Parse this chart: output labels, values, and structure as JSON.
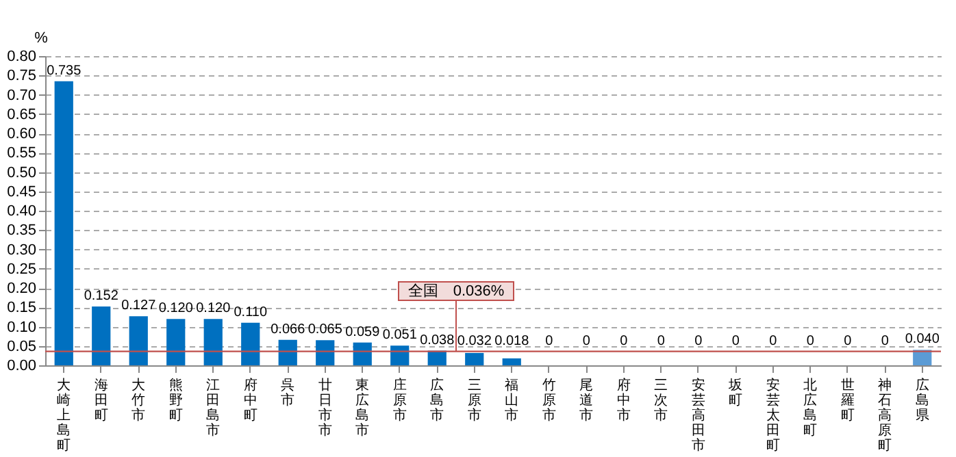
{
  "chart_data": {
    "type": "bar",
    "ylabel": "%",
    "categories": [
      "大崎上島町",
      "海田町",
      "大竹市",
      "熊野町",
      "江田島市",
      "府中町",
      "呉市",
      "廿日市市",
      "東広島市",
      "庄原市",
      "広島市",
      "三原市",
      "福山市",
      "竹原市",
      "尾道市",
      "府中市",
      "三次市",
      "安芸高田市",
      "坂町",
      "安芸太田町",
      "北広島町",
      "世羅町",
      "神石高原町",
      "広島県"
    ],
    "values": [
      0.735,
      0.152,
      0.127,
      0.12,
      0.12,
      0.11,
      0.066,
      0.065,
      0.059,
      0.051,
      0.038,
      0.032,
      0.018,
      0,
      0,
      0,
      0,
      0,
      0,
      0,
      0,
      0,
      0,
      0.04
    ],
    "value_labels": [
      "0.735",
      "0.152",
      "0.127",
      "0.120",
      "0.120",
      "0.110",
      "0.066",
      "0.065",
      "0.059",
      "0.051",
      "0.038",
      "0.032",
      "0.018",
      "0",
      "0",
      "0",
      "0",
      "0",
      "0",
      "0",
      "0",
      "0",
      "0",
      "0.040"
    ],
    "colors": [
      "#0070c0",
      "#0070c0",
      "#0070c0",
      "#0070c0",
      "#0070c0",
      "#0070c0",
      "#0070c0",
      "#0070c0",
      "#0070c0",
      "#0070c0",
      "#0070c0",
      "#0070c0",
      "#0070c0",
      "#0070c0",
      "#0070c0",
      "#0070c0",
      "#0070c0",
      "#0070c0",
      "#0070c0",
      "#0070c0",
      "#0070c0",
      "#0070c0",
      "#0070c0",
      "#5b9bd5"
    ],
    "ylim": [
      0,
      0.8
    ],
    "yticks": [
      {
        "value": 0,
        "label": "0.00"
      },
      {
        "value": 0.05,
        "label": "0.05"
      },
      {
        "value": 0.1,
        "label": "0.10"
      },
      {
        "value": 0.15,
        "label": "0.15"
      },
      {
        "value": 0.2,
        "label": "0.20"
      },
      {
        "value": 0.25,
        "label": "0.25"
      },
      {
        "value": 0.3,
        "label": "0.30"
      },
      {
        "value": 0.35,
        "label": "0.35"
      },
      {
        "value": 0.4,
        "label": "0.40"
      },
      {
        "value": 0.45,
        "label": "0.45"
      },
      {
        "value": 0.5,
        "label": "0.50"
      },
      {
        "value": 0.55,
        "label": "0.55"
      },
      {
        "value": 0.6,
        "label": "0.60"
      },
      {
        "value": 0.65,
        "label": "0.65"
      },
      {
        "value": 0.7,
        "label": "0.70"
      },
      {
        "value": 0.75,
        "label": "0.75"
      },
      {
        "value": 0.8,
        "label": "0.80"
      }
    ],
    "grid": "y",
    "ref_lines": [
      {
        "axis": "y",
        "value": 0.036,
        "label": "全国　0.036%",
        "color": "#c0504d"
      }
    ]
  }
}
